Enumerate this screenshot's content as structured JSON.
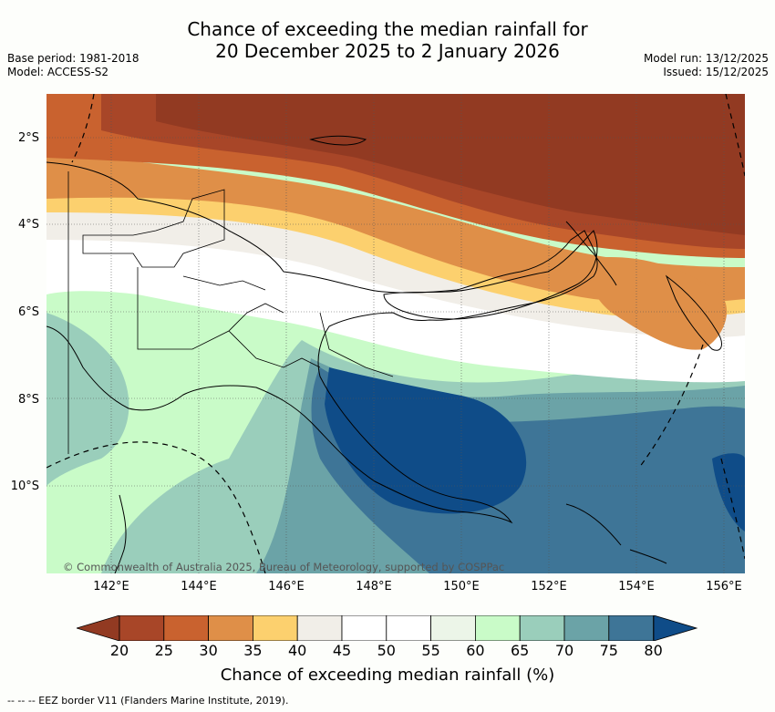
{
  "title_line1": "Chance of exceeding the median rainfall for",
  "title_line2": "20 December 2025 to 2 January 2026",
  "base_period": "Base period: 1981-2018",
  "model": "Model: ACCESS-S2",
  "model_run": "Model run: 13/12/2025",
  "issued": "Issued: 15/12/2025",
  "lat_labels": [
    "2°S",
    "4°S",
    "6°S",
    "8°S",
    "10°S"
  ],
  "lon_labels": [
    "142°E",
    "144°E",
    "146°E",
    "148°E",
    "150°E",
    "152°E",
    "154°E",
    "156°E"
  ],
  "copyright": "© Commonwealth of Australia 2025, Bureau of Meteorology, supported by COSPPac",
  "colorbar": {
    "ticks": [
      "20",
      "25",
      "30",
      "35",
      "40",
      "45",
      "50",
      "55",
      "60",
      "65",
      "70",
      "75",
      "80"
    ],
    "colors": [
      "#a84628",
      "#c9622f",
      "#df8f48",
      "#fcd06e",
      "#f1eee8",
      "#ffffff",
      "#ffffff",
      "#ecf5e8",
      "#c9fbc8",
      "#9acebb",
      "#6ba3a7",
      "#3e7597"
    ],
    "under_color": "#923a22",
    "over_color": "#0f4c88",
    "label": "Chance of exceeding median rainfall (%)"
  },
  "legend_text": "-- -- -- EEZ border V11 (Flanders Marine Institute, 2019)."
}
